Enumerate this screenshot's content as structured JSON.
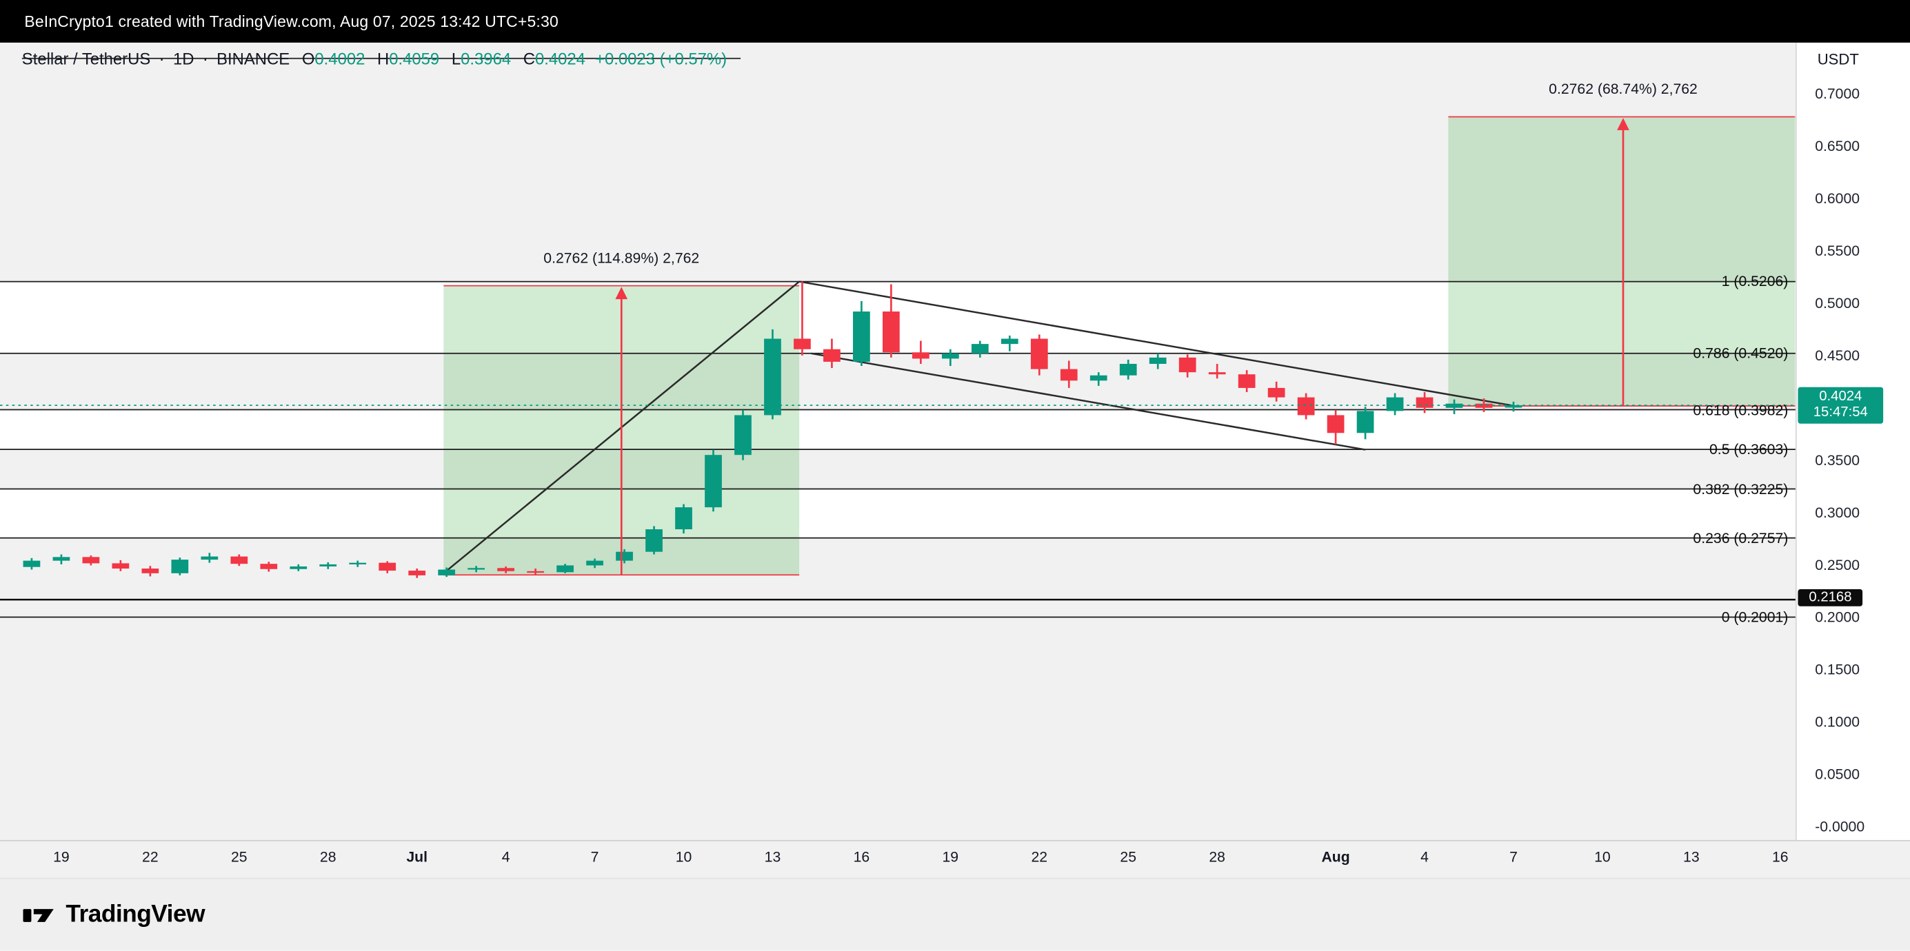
{
  "topbar": {
    "text": "BeInCrypto1 created with TradingView.com, Aug 07, 2025 13:42 UTC+5:30"
  },
  "legend": {
    "symbol": "Stellar / TetherUS",
    "separator": "·",
    "interval": "1D",
    "exchange": "BINANCE",
    "o_label": "O",
    "o": "0.4002",
    "h_label": "H",
    "h": "0.4059",
    "l_label": "L",
    "l": "0.3964",
    "c_label": "C",
    "c": "0.4024",
    "change": "+0.0023 (+0.57%)"
  },
  "price_axis": {
    "currency": "USDT",
    "ticks": [
      {
        "label": "0.7000",
        "value": 0.7
      },
      {
        "label": "0.6500",
        "value": 0.65
      },
      {
        "label": "0.6000",
        "value": 0.6
      },
      {
        "label": "0.5500",
        "value": 0.55
      },
      {
        "label": "0.5000",
        "value": 0.5
      },
      {
        "label": "0.4500",
        "value": 0.45
      },
      {
        "label": "0.3500",
        "value": 0.35
      },
      {
        "label": "0.3000",
        "value": 0.3
      },
      {
        "label": "0.2500",
        "value": 0.25
      },
      {
        "label": "0.2000",
        "value": 0.2
      },
      {
        "label": "0.1500",
        "value": 0.15
      },
      {
        "label": "0.1000",
        "value": 0.1
      },
      {
        "label": "0.0500",
        "value": 0.05
      },
      {
        "label": "-0.0000",
        "value": 0.0
      }
    ],
    "current_badge": {
      "price": "0.4024",
      "countdown": "15:47:54",
      "color": "#089981"
    },
    "line_badge": {
      "price": "0.2168",
      "color": "#0c0c0c"
    }
  },
  "time_axis": {
    "ticks": [
      {
        "label": "19",
        "d": 1
      },
      {
        "label": "22",
        "d": 4
      },
      {
        "label": "25",
        "d": 7
      },
      {
        "label": "28",
        "d": 10
      },
      {
        "label": "Jul",
        "d": 13,
        "bold": true
      },
      {
        "label": "4",
        "d": 16
      },
      {
        "label": "7",
        "d": 19
      },
      {
        "label": "10",
        "d": 22
      },
      {
        "label": "13",
        "d": 25
      },
      {
        "label": "16",
        "d": 28
      },
      {
        "label": "19",
        "d": 31
      },
      {
        "label": "22",
        "d": 34
      },
      {
        "label": "25",
        "d": 37
      },
      {
        "label": "28",
        "d": 40
      },
      {
        "label": "Aug",
        "d": 44,
        "bold": true
      },
      {
        "label": "4",
        "d": 47
      },
      {
        "label": "7",
        "d": 50
      },
      {
        "label": "10",
        "d": 53
      },
      {
        "label": "13",
        "d": 56
      },
      {
        "label": "16",
        "d": 59
      }
    ]
  },
  "brand": {
    "name": "TradingView"
  },
  "chart_data": {
    "type": "candlestick",
    "title": "Stellar / TetherUS 1D BINANCE",
    "up_color": "#089981",
    "down_color": "#f23645",
    "box_fill": "rgba(76,175,80,0.25)",
    "box_edge": "#f23645",
    "band_gray": "#f1f1f1",
    "ylim": [
      0.0,
      0.72
    ],
    "current_price": 0.4024,
    "candles": [
      {
        "date": "Jun 18",
        "o": 0.248,
        "h": 0.2565,
        "l": 0.2455,
        "c": 0.254
      },
      {
        "date": "Jun 19",
        "o": 0.254,
        "h": 0.26,
        "l": 0.2505,
        "c": 0.2575
      },
      {
        "date": "Jun 20",
        "o": 0.2575,
        "h": 0.259,
        "l": 0.2495,
        "c": 0.2515
      },
      {
        "date": "Jun 21",
        "o": 0.2515,
        "h": 0.2545,
        "l": 0.244,
        "c": 0.2465
      },
      {
        "date": "Jun 22",
        "o": 0.2465,
        "h": 0.249,
        "l": 0.239,
        "c": 0.242
      },
      {
        "date": "Jun 23",
        "o": 0.242,
        "h": 0.257,
        "l": 0.24,
        "c": 0.255
      },
      {
        "date": "Jun 24",
        "o": 0.255,
        "h": 0.2615,
        "l": 0.252,
        "c": 0.258
      },
      {
        "date": "Jun 25",
        "o": 0.258,
        "h": 0.26,
        "l": 0.249,
        "c": 0.251
      },
      {
        "date": "Jun 26",
        "o": 0.251,
        "h": 0.253,
        "l": 0.2435,
        "c": 0.246
      },
      {
        "date": "Jun 27",
        "o": 0.246,
        "h": 0.2505,
        "l": 0.244,
        "c": 0.2485
      },
      {
        "date": "Jun 28",
        "o": 0.2485,
        "h": 0.2525,
        "l": 0.246,
        "c": 0.2505
      },
      {
        "date": "Jun 29",
        "o": 0.2505,
        "h": 0.254,
        "l": 0.248,
        "c": 0.252
      },
      {
        "date": "Jun 30",
        "o": 0.252,
        "h": 0.2535,
        "l": 0.242,
        "c": 0.2445
      },
      {
        "date": "Jul 1",
        "o": 0.2445,
        "h": 0.2465,
        "l": 0.2375,
        "c": 0.24
      },
      {
        "date": "Jul 2",
        "o": 0.24,
        "h": 0.2475,
        "l": 0.2385,
        "c": 0.2455
      },
      {
        "date": "Jul 3",
        "o": 0.2455,
        "h": 0.249,
        "l": 0.243,
        "c": 0.247
      },
      {
        "date": "Jul 4",
        "o": 0.247,
        "h": 0.2485,
        "l": 0.242,
        "c": 0.244
      },
      {
        "date": "Jul 5",
        "o": 0.244,
        "h": 0.2465,
        "l": 0.2405,
        "c": 0.243
      },
      {
        "date": "Jul 6",
        "o": 0.243,
        "h": 0.251,
        "l": 0.242,
        "c": 0.2495
      },
      {
        "date": "Jul 7",
        "o": 0.2495,
        "h": 0.256,
        "l": 0.247,
        "c": 0.254
      },
      {
        "date": "Jul 8",
        "o": 0.254,
        "h": 0.265,
        "l": 0.2515,
        "c": 0.2625
      },
      {
        "date": "Jul 9",
        "o": 0.2625,
        "h": 0.287,
        "l": 0.26,
        "c": 0.284
      },
      {
        "date": "Jul 10",
        "o": 0.284,
        "h": 0.308,
        "l": 0.28,
        "c": 0.305
      },
      {
        "date": "Jul 11",
        "o": 0.305,
        "h": 0.36,
        "l": 0.301,
        "c": 0.355
      },
      {
        "date": "Jul 12",
        "o": 0.355,
        "h": 0.398,
        "l": 0.35,
        "c": 0.393
      },
      {
        "date": "Jul 13",
        "o": 0.393,
        "h": 0.475,
        "l": 0.389,
        "c": 0.466
      },
      {
        "date": "Jul 14",
        "o": 0.466,
        "h": 0.5206,
        "l": 0.45,
        "c": 0.456
      },
      {
        "date": "Jul 15",
        "o": 0.456,
        "h": 0.466,
        "l": 0.438,
        "c": 0.444
      },
      {
        "date": "Jul 16",
        "o": 0.444,
        "h": 0.502,
        "l": 0.44,
        "c": 0.492
      },
      {
        "date": "Jul 17",
        "o": 0.492,
        "h": 0.518,
        "l": 0.448,
        "c": 0.453
      },
      {
        "date": "Jul 18",
        "o": 0.453,
        "h": 0.464,
        "l": 0.442,
        "c": 0.447
      },
      {
        "date": "Jul 19",
        "o": 0.447,
        "h": 0.456,
        "l": 0.44,
        "c": 0.452
      },
      {
        "date": "Jul 20",
        "o": 0.452,
        "h": 0.464,
        "l": 0.448,
        "c": 0.461
      },
      {
        "date": "Jul 21",
        "o": 0.461,
        "h": 0.469,
        "l": 0.454,
        "c": 0.466
      },
      {
        "date": "Jul 22",
        "o": 0.466,
        "h": 0.47,
        "l": 0.431,
        "c": 0.437
      },
      {
        "date": "Jul 23",
        "o": 0.437,
        "h": 0.445,
        "l": 0.419,
        "c": 0.426
      },
      {
        "date": "Jul 24",
        "o": 0.426,
        "h": 0.434,
        "l": 0.421,
        "c": 0.431
      },
      {
        "date": "Jul 25",
        "o": 0.431,
        "h": 0.446,
        "l": 0.427,
        "c": 0.442
      },
      {
        "date": "Jul 26",
        "o": 0.442,
        "h": 0.452,
        "l": 0.437,
        "c": 0.448
      },
      {
        "date": "Jul 27",
        "o": 0.448,
        "h": 0.451,
        "l": 0.429,
        "c": 0.434
      },
      {
        "date": "Jul 28",
        "o": 0.434,
        "h": 0.442,
        "l": 0.428,
        "c": 0.432
      },
      {
        "date": "Jul 29",
        "o": 0.432,
        "h": 0.436,
        "l": 0.415,
        "c": 0.419
      },
      {
        "date": "Jul 30",
        "o": 0.419,
        "h": 0.425,
        "l": 0.406,
        "c": 0.41
      },
      {
        "date": "Jul 31",
        "o": 0.41,
        "h": 0.414,
        "l": 0.389,
        "c": 0.393
      },
      {
        "date": "Aug 1",
        "o": 0.393,
        "h": 0.398,
        "l": 0.365,
        "c": 0.376
      },
      {
        "date": "Aug 2",
        "o": 0.376,
        "h": 0.401,
        "l": 0.37,
        "c": 0.397
      },
      {
        "date": "Aug 3",
        "o": 0.397,
        "h": 0.414,
        "l": 0.393,
        "c": 0.41
      },
      {
        "date": "Aug 4",
        "o": 0.41,
        "h": 0.415,
        "l": 0.395,
        "c": 0.4
      },
      {
        "date": "Aug 5",
        "o": 0.4,
        "h": 0.408,
        "l": 0.394,
        "c": 0.404
      },
      {
        "date": "Aug 6",
        "o": 0.404,
        "h": 0.409,
        "l": 0.396,
        "c": 0.4
      },
      {
        "date": "Aug 7",
        "o": 0.4002,
        "h": 0.4059,
        "l": 0.3964,
        "c": 0.4024
      }
    ],
    "fib_retracement": {
      "levels": [
        {
          "label": "1 (0.5206)",
          "value": 0.5206
        },
        {
          "label": "0.786 (0.4520)",
          "value": 0.452
        },
        {
          "label": "0.618 (0.3982)",
          "value": 0.3982
        },
        {
          "label": "0.5 (0.3603)",
          "value": 0.3603
        },
        {
          "label": "0.382 (0.3225)",
          "value": 0.3225
        },
        {
          "label": "0.236 (0.2757)",
          "value": 0.2757
        },
        {
          "label": "0 (0.2001)",
          "value": 0.2001
        }
      ],
      "white_zones": [
        [
          0.5206,
          0.452
        ],
        [
          0.3982,
          0.3603
        ],
        [
          0.3225,
          0.2757
        ]
      ]
    },
    "horizontal_line": {
      "price": 0.2168,
      "label": "0.2168"
    },
    "trendlines": [
      {
        "d1": 13.9,
        "p1": 0.242,
        "d2": 25.9,
        "p2": 0.5206
      },
      {
        "d1": 25.9,
        "p1": 0.5206,
        "d2": 50.2,
        "p2": 0.401
      },
      {
        "d1": 26.3,
        "p1": 0.452,
        "d2": 45.0,
        "p2": 0.36
      }
    ],
    "projection_boxes": [
      {
        "label": "0.2762 (114.89%) 2,762",
        "d1": 13.9,
        "d2": 25.9,
        "price_bottom": 0.2404,
        "price_top": 0.5166,
        "arrow_d": 19.9
      },
      {
        "label": "0.2762 (68.74%) 2,762",
        "d1": 47.8,
        "d2": 59.5,
        "price_bottom": 0.4018,
        "price_top": 0.678,
        "arrow_d": 53.7
      }
    ]
  }
}
